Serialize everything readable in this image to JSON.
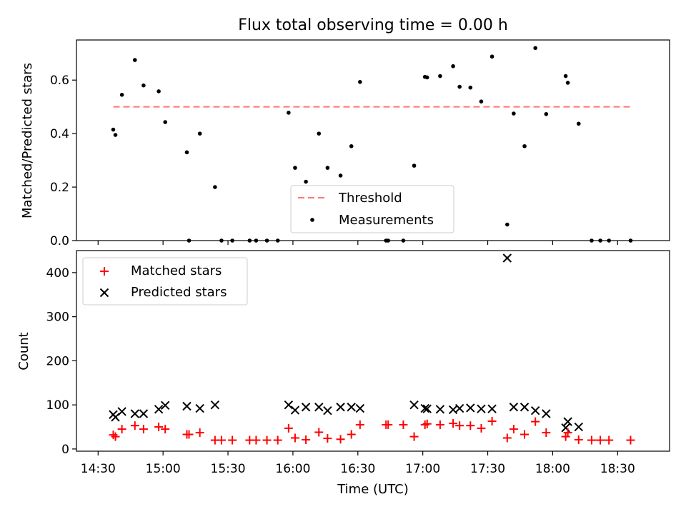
{
  "chart_data": [
    {
      "type": "scatter",
      "title": "Flux total observing time = 0.00 h",
      "ylabel": "Matched/Predicted stars",
      "xlabel": "",
      "xlim": [
        "14:20",
        "18:54"
      ],
      "ylim": [
        0,
        0.75
      ],
      "yticks": [
        "0.0",
        "0.2",
        "0.4",
        "0.6"
      ],
      "legend_position": "lower-center",
      "threshold": {
        "name": "Threshold",
        "value": 0.5,
        "x": [
          "14:37",
          "18:37"
        ],
        "color": "#ff7777",
        "style": "dashed"
      },
      "series": [
        {
          "name": "Measurements",
          "color": "#000000",
          "points": [
            [
              "14:37",
              0.415
            ],
            [
              "14:38",
              0.395
            ],
            [
              "14:41",
              0.545
            ],
            [
              "14:47",
              0.675
            ],
            [
              "14:51",
              0.58
            ],
            [
              "14:58",
              0.558
            ],
            [
              "15:01",
              0.443
            ],
            [
              "15:11",
              0.33
            ],
            [
              "15:12",
              0.0
            ],
            [
              "15:17",
              0.4
            ],
            [
              "15:24",
              0.2
            ],
            [
              "15:27",
              0.0
            ],
            [
              "15:32",
              0.0
            ],
            [
              "15:40",
              0.0
            ],
            [
              "15:43",
              0.0
            ],
            [
              "15:48",
              0.0
            ],
            [
              "15:53",
              0.0
            ],
            [
              "15:58",
              0.478
            ],
            [
              "16:01",
              0.272
            ],
            [
              "16:06",
              0.22
            ],
            [
              "16:12",
              0.4
            ],
            [
              "16:16",
              0.272
            ],
            [
              "16:22",
              0.243
            ],
            [
              "16:27",
              0.353
            ],
            [
              "16:31",
              0.593
            ],
            [
              "16:43",
              0.0
            ],
            [
              "16:44",
              0.0
            ],
            [
              "16:51",
              0.0
            ],
            [
              "16:56",
              0.28
            ],
            [
              "17:01",
              0.612
            ],
            [
              "17:02",
              0.61
            ],
            [
              "17:08",
              0.615
            ],
            [
              "17:14",
              0.652
            ],
            [
              "17:17",
              0.575
            ],
            [
              "17:22",
              0.572
            ],
            [
              "17:27",
              0.52
            ],
            [
              "17:32",
              0.688
            ],
            [
              "17:39",
              0.06
            ],
            [
              "17:42",
              0.475
            ],
            [
              "17:47",
              0.353
            ],
            [
              "17:52",
              0.72
            ],
            [
              "17:57",
              0.473
            ],
            [
              "18:06",
              0.615
            ],
            [
              "18:07",
              0.59
            ],
            [
              "18:12",
              0.437
            ],
            [
              "18:18",
              0.0
            ],
            [
              "18:22",
              0.0
            ],
            [
              "18:26",
              0.0
            ],
            [
              "18:36",
              0.0
            ]
          ]
        }
      ]
    },
    {
      "type": "scatter",
      "xlabel": "Time (UTC)",
      "ylabel": "Count",
      "xlim": [
        "14:20",
        "18:54"
      ],
      "ylim": [
        -5,
        450
      ],
      "xticks": [
        "14:30",
        "15:00",
        "15:30",
        "16:00",
        "16:30",
        "17:00",
        "17:30",
        "18:00",
        "18:30"
      ],
      "yticks": [
        "0",
        "100",
        "200",
        "300",
        "400"
      ],
      "legend_position": "upper-left",
      "series": [
        {
          "name": "Matched stars",
          "marker": "plus",
          "color": "#ff0000",
          "points": [
            [
              "14:37",
              32
            ],
            [
              "14:38",
              28
            ],
            [
              "14:41",
              45
            ],
            [
              "14:47",
              53
            ],
            [
              "14:51",
              45
            ],
            [
              "14:58",
              50
            ],
            [
              "15:01",
              45
            ],
            [
              "15:11",
              33
            ],
            [
              "15:12",
              33
            ],
            [
              "15:17",
              37
            ],
            [
              "15:24",
              20
            ],
            [
              "15:27",
              20
            ],
            [
              "15:32",
              20
            ],
            [
              "15:40",
              20
            ],
            [
              "15:43",
              20
            ],
            [
              "15:48",
              20
            ],
            [
              "15:53",
              20
            ],
            [
              "15:58",
              47
            ],
            [
              "16:01",
              25
            ],
            [
              "16:06",
              21
            ],
            [
              "16:12",
              38
            ],
            [
              "16:16",
              24
            ],
            [
              "16:22",
              22
            ],
            [
              "16:27",
              33
            ],
            [
              "16:31",
              55
            ],
            [
              "16:43",
              55
            ],
            [
              "16:44",
              55
            ],
            [
              "16:51",
              55
            ],
            [
              "16:56",
              28
            ],
            [
              "17:01",
              55
            ],
            [
              "17:02",
              57
            ],
            [
              "17:08",
              55
            ],
            [
              "17:14",
              58
            ],
            [
              "17:17",
              53
            ],
            [
              "17:22",
              53
            ],
            [
              "17:27",
              47
            ],
            [
              "17:32",
              63
            ],
            [
              "17:39",
              25
            ],
            [
              "17:42",
              45
            ],
            [
              "17:47",
              33
            ],
            [
              "17:52",
              62
            ],
            [
              "17:57",
              37
            ],
            [
              "18:06",
              28
            ],
            [
              "18:07",
              37
            ],
            [
              "18:12",
              21
            ],
            [
              "18:18",
              20
            ],
            [
              "18:22",
              20
            ],
            [
              "18:26",
              20
            ],
            [
              "18:36",
              20
            ]
          ]
        },
        {
          "name": "Predicted stars",
          "marker": "x",
          "color": "#000000",
          "points": [
            [
              "14:37",
              78
            ],
            [
              "14:38",
              72
            ],
            [
              "14:41",
              85
            ],
            [
              "14:47",
              80
            ],
            [
              "14:51",
              80
            ],
            [
              "14:58",
              90
            ],
            [
              "15:01",
              99
            ],
            [
              "15:11",
              97
            ],
            [
              "15:17",
              92
            ],
            [
              "15:24",
              100
            ],
            [
              "15:58",
              100
            ],
            [
              "16:01",
              88
            ],
            [
              "16:06",
              95
            ],
            [
              "16:12",
              95
            ],
            [
              "16:16",
              87
            ],
            [
              "16:22",
              95
            ],
            [
              "16:27",
              95
            ],
            [
              "16:31",
              92
            ],
            [
              "16:56",
              100
            ],
            [
              "17:01",
              92
            ],
            [
              "17:02",
              91
            ],
            [
              "17:08",
              90
            ],
            [
              "17:14",
              89
            ],
            [
              "17:17",
              92
            ],
            [
              "17:22",
              93
            ],
            [
              "17:27",
              91
            ],
            [
              "17:32",
              91
            ],
            [
              "17:39",
              433
            ],
            [
              "17:42",
              95
            ],
            [
              "17:47",
              95
            ],
            [
              "17:52",
              87
            ],
            [
              "17:57",
              80
            ],
            [
              "18:06",
              48
            ],
            [
              "18:07",
              62
            ],
            [
              "18:12",
              50
            ]
          ]
        }
      ]
    }
  ]
}
